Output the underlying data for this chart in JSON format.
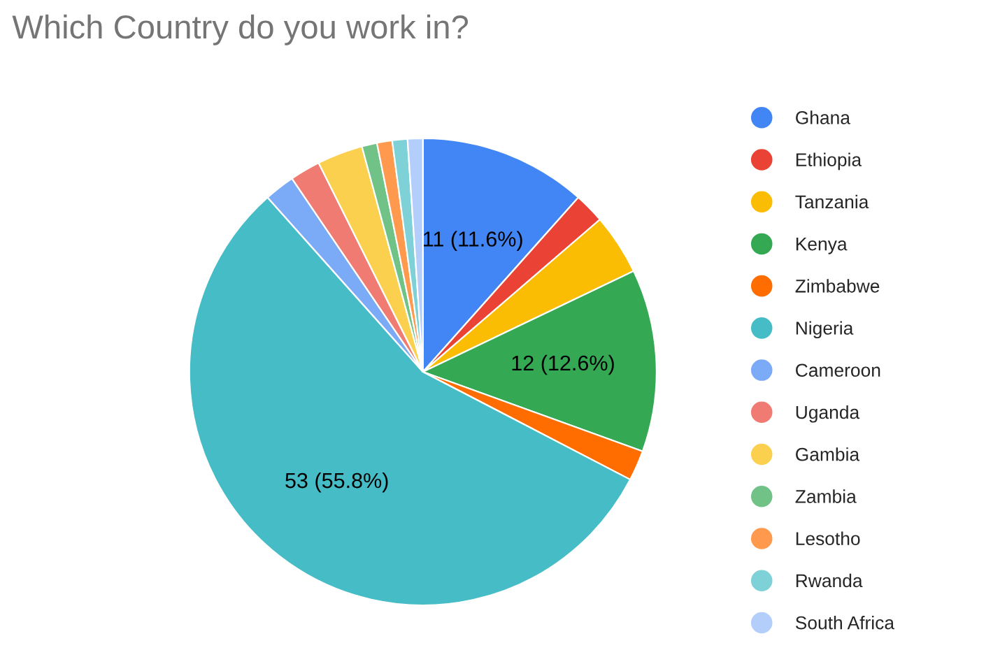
{
  "chart_data": {
    "type": "pie",
    "title": "Which Country do you work in?",
    "categories": [
      "Ghana",
      "Ethiopia",
      "Tanzania",
      "Kenya",
      "Zimbabwe",
      "Nigeria",
      "Cameroon",
      "Uganda",
      "Gambia",
      "Zambia",
      "Lesotho",
      "Rwanda",
      "South Africa"
    ],
    "values": [
      11,
      2,
      4,
      12,
      2,
      53,
      2,
      2,
      3,
      1,
      1,
      1,
      1
    ],
    "value_labels": [
      "11 (11.6%)",
      null,
      null,
      "12 (12.6%)",
      null,
      "53 (55.8%)",
      null,
      null,
      null,
      null,
      null,
      null,
      null
    ],
    "colors": [
      "#4285f4",
      "#ea4335",
      "#fbbc04",
      "#34a853",
      "#ff6d01",
      "#46bdc6",
      "#7baaf7",
      "#f07b72",
      "#fcd04f",
      "#71c287",
      "#ff994d",
      "#7ed1d7",
      "#b3cefb"
    ],
    "legend": "right"
  }
}
